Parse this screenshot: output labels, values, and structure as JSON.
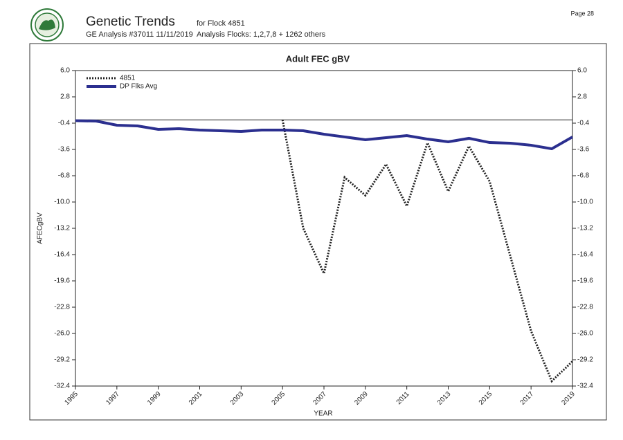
{
  "header": {
    "title": "Genetic Trends",
    "flock": "for Flock 4851",
    "analysis": "GE Analysis #37011 11/11/2019",
    "flocks": "Analysis Flocks: 1,2,7,8 + 1262 others",
    "page": "Page 28"
  },
  "chart_data": {
    "type": "line",
    "title": "Adult FEC gBV",
    "x_label": "YEAR",
    "y_label": "AFECgBV",
    "x": [
      1995,
      1996,
      1997,
      1998,
      1999,
      2000,
      2001,
      2002,
      2003,
      2004,
      2005,
      2006,
      2007,
      2008,
      2009,
      2010,
      2011,
      2012,
      2013,
      2014,
      2015,
      2016,
      2017,
      2018,
      2019
    ],
    "series": [
      {
        "name": "4851",
        "color": "#222222",
        "dash": true,
        "values": [
          null,
          null,
          null,
          null,
          null,
          null,
          null,
          null,
          null,
          null,
          0.0,
          -13.2,
          -18.7,
          -7.0,
          -9.2,
          -5.4,
          -10.5,
          -2.8,
          -8.7,
          -3.2,
          -7.5,
          -16.6,
          -25.7,
          -31.8,
          -29.4
        ]
      },
      {
        "name": "DP Flks Avg",
        "color": "#2b2f8f",
        "dash": false,
        "values": [
          -0.1,
          -0.15,
          -0.65,
          -0.74,
          -1.16,
          -1.07,
          -1.24,
          -1.33,
          -1.41,
          -1.24,
          -1.24,
          -1.33,
          -1.75,
          -2.08,
          -2.42,
          -2.17,
          -1.92,
          -2.34,
          -2.67,
          -2.25,
          -2.76,
          -2.84,
          -3.09,
          -3.52,
          -2.08
        ]
      }
    ],
    "xlim": [
      1995,
      2019
    ],
    "xticks": [
      1995,
      1997,
      1999,
      2001,
      2003,
      2005,
      2007,
      2009,
      2011,
      2013,
      2015,
      2017,
      2019
    ],
    "ylim": [
      -32.4,
      6
    ],
    "yticks": [
      {
        "value": 6,
        "label": "6.0"
      },
      2.8,
      -0.4,
      -3.6,
      -6.8,
      {
        "value": -10,
        "label": "-10.0"
      },
      -13.2,
      -16.4,
      -19.6,
      -22.8,
      {
        "value": -26,
        "label": "-26.0"
      },
      -29.2,
      -32.4
    ],
    "right_axis": true,
    "legend": "upper left"
  }
}
